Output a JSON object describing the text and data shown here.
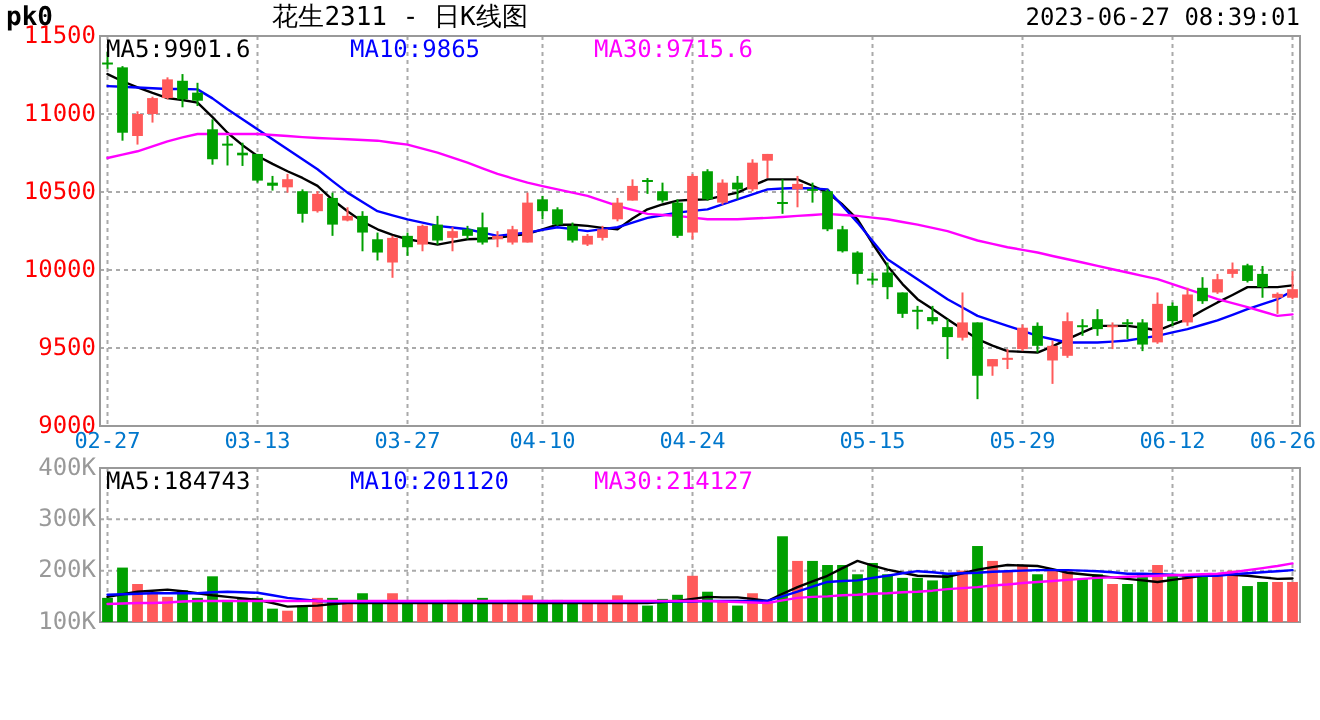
{
  "chart_data": [
    {
      "type": "candlestick",
      "title": "花生2311 - 日K线图",
      "annotations": [
        "pk0",
        "2023-06-27 08:39:01"
      ],
      "categories": [
        "02-27",
        null,
        null,
        null,
        null,
        null,
        null,
        null,
        null,
        null,
        "03-13",
        null,
        null,
        null,
        null,
        null,
        null,
        null,
        null,
        null,
        "03-27",
        null,
        null,
        null,
        null,
        null,
        null,
        null,
        null,
        "04-10",
        null,
        null,
        null,
        null,
        null,
        null,
        null,
        null,
        null,
        "04-24",
        null,
        null,
        null,
        null,
        null,
        null,
        null,
        null,
        null,
        null,
        null,
        "05-15",
        null,
        null,
        null,
        null,
        null,
        null,
        null,
        null,
        null,
        "05-29",
        null,
        null,
        null,
        null,
        null,
        null,
        null,
        null,
        null,
        "06-12",
        null,
        null,
        null,
        null,
        null,
        null,
        null,
        "06-26"
      ],
      "ohlc": [
        [
          11330,
          11400,
          11290,
          11320
        ],
        [
          11299,
          11307,
          10829,
          10880
        ],
        [
          10859,
          11017,
          10804,
          11000
        ],
        [
          11000,
          11111,
          10945,
          11102
        ],
        [
          11102,
          11235,
          11094,
          11222
        ],
        [
          11213,
          11256,
          11043,
          11094
        ],
        [
          11137,
          11200,
          11051,
          11085
        ],
        [
          10902,
          10966,
          10675,
          10710
        ],
        [
          10810,
          10860,
          10670,
          10800
        ],
        [
          10752,
          10816,
          10667,
          10735
        ],
        [
          10744,
          10744,
          10560,
          10573
        ],
        [
          10560,
          10603,
          10509,
          10540
        ],
        [
          10530,
          10616,
          10496,
          10582
        ],
        [
          10505,
          10517,
          10304,
          10360
        ],
        [
          10377,
          10505,
          10368,
          10488
        ],
        [
          10462,
          10496,
          10219,
          10291
        ],
        [
          10317,
          10402,
          10312,
          10347
        ],
        [
          10347,
          10377,
          10120,
          10240
        ],
        [
          10197,
          10240,
          10061,
          10112
        ],
        [
          10048,
          10219,
          9950,
          10206
        ],
        [
          10219,
          10240,
          10091,
          10146
        ],
        [
          10163,
          10291,
          10120,
          10283
        ],
        [
          10291,
          10347,
          10163,
          10189
        ],
        [
          10206,
          10274,
          10120,
          10249
        ],
        [
          10261,
          10283,
          10197,
          10219
        ],
        [
          10274,
          10368,
          10163,
          10176
        ],
        [
          10197,
          10249,
          10146,
          10219
        ],
        [
          10176,
          10283,
          10163,
          10261
        ],
        [
          10176,
          10496,
          10176,
          10432
        ],
        [
          10453,
          10475,
          10325,
          10377
        ],
        [
          10389,
          10402,
          10283,
          10291
        ],
        [
          10283,
          10304,
          10176,
          10189
        ],
        [
          10163,
          10231,
          10154,
          10219
        ],
        [
          10206,
          10283,
          10189,
          10261
        ],
        [
          10325,
          10462,
          10312,
          10432
        ],
        [
          10445,
          10581,
          10445,
          10539
        ],
        [
          10577,
          10590,
          10488,
          10565
        ],
        [
          10505,
          10560,
          10432,
          10445
        ],
        [
          10432,
          10453,
          10206,
          10219
        ],
        [
          10240,
          10616,
          10197,
          10603
        ],
        [
          10633,
          10646,
          10445,
          10453
        ],
        [
          10432,
          10581,
          10419,
          10560
        ],
        [
          10560,
          10603,
          10453,
          10517
        ],
        [
          10517,
          10710,
          10505,
          10688
        ],
        [
          10701,
          10744,
          10590,
          10744
        ],
        [
          10436,
          10581,
          10360,
          10428
        ],
        [
          10517,
          10603,
          10402,
          10552
        ],
        [
          10520,
          10560,
          10432,
          10512
        ],
        [
          10505,
          10517,
          10249,
          10261
        ],
        [
          10261,
          10283,
          10112,
          10120
        ],
        [
          10112,
          10120,
          9907,
          9975
        ],
        [
          9945,
          9984,
          9907,
          9940
        ],
        [
          9984,
          10048,
          9813,
          9890
        ],
        [
          9856,
          9856,
          9693,
          9719
        ],
        [
          9745,
          9770,
          9620,
          9740
        ],
        [
          9698,
          9770,
          9651,
          9672
        ],
        [
          9634,
          9685,
          9429,
          9570
        ],
        [
          9566,
          9856,
          9548,
          9664
        ],
        [
          9664,
          9664,
          9172,
          9322
        ],
        [
          9382,
          9429,
          9322,
          9429
        ],
        [
          9430,
          9493,
          9365,
          9437
        ],
        [
          9493,
          9651,
          9480,
          9630
        ],
        [
          9642,
          9664,
          9471,
          9514
        ],
        [
          9420,
          9548,
          9270,
          9514
        ],
        [
          9450,
          9728,
          9437,
          9672
        ],
        [
          9646,
          9685,
          9578,
          9642
        ],
        [
          9685,
          9749,
          9578,
          9621
        ],
        [
          9638,
          9664,
          9493,
          9646
        ],
        [
          9665,
          9685,
          9557,
          9660
        ],
        [
          9664,
          9685,
          9480,
          9522
        ],
        [
          9536,
          9856,
          9527,
          9783
        ],
        [
          9770,
          9792,
          9642,
          9672
        ],
        [
          9664,
          9886,
          9642,
          9843
        ],
        [
          9886,
          9954,
          9783,
          9800
        ],
        [
          9856,
          9975,
          9847,
          9941
        ],
        [
          9975,
          10048,
          9950,
          10005
        ],
        [
          10030,
          10040,
          9920,
          9930
        ],
        [
          9975,
          10026,
          9822,
          9890
        ],
        [
          9822,
          9856,
          9719,
          9847
        ],
        [
          9822,
          9992,
          9813,
          9877
        ]
      ],
      "colors": [
        "#00a000",
        "#00a000",
        "#ff5a5a",
        "#ff5a5a",
        "#ff5a5a",
        "#00a000",
        "#00a000",
        "#00a000",
        "#00a000",
        "#00a000",
        "#00a000",
        "#00a000",
        "#ff5a5a",
        "#00a000",
        "#ff5a5a",
        "#00a000",
        "#ff5a5a",
        "#00a000",
        "#00a000",
        "#ff5a5a",
        "#00a000",
        "#ff5a5a",
        "#00a000",
        "#ff5a5a",
        "#00a000",
        "#00a000",
        "#ff5a5a",
        "#ff5a5a",
        "#ff5a5a",
        "#00a000",
        "#00a000",
        "#00a000",
        "#ff5a5a",
        "#ff5a5a",
        "#ff5a5a",
        "#ff5a5a",
        "#00a000",
        "#00a000",
        "#00a000",
        "#ff5a5a",
        "#00a000",
        "#ff5a5a",
        "#00a000",
        "#ff5a5a",
        "#ff5a5a",
        "#00a000",
        "#ff5a5a",
        "#00a000",
        "#00a000",
        "#00a000",
        "#00a000",
        "#00a000",
        "#00a000",
        "#00a000",
        "#00a000",
        "#00a000",
        "#00a000",
        "#ff5a5a",
        "#00a000",
        "#ff5a5a",
        "#ff5a5a",
        "#ff5a5a",
        "#00a000",
        "#ff5a5a",
        "#ff5a5a",
        "#00a000",
        "#00a000",
        "#ff5a5a",
        "#00a000",
        "#00a000",
        "#ff5a5a",
        "#00a000",
        "#ff5a5a",
        "#00a000",
        "#ff5a5a",
        "#ff5a5a",
        "#00a000",
        "#00a000",
        "#ff5a5a",
        "#ff5a5a"
      ],
      "series": [
        {
          "name": "MA5:9901.6",
          "type": "line",
          "color": "#000000",
          "values": [
            11256,
            11210,
            11171,
            11135,
            11102,
            11090,
            11073,
            10980,
            10880,
            10800,
            10731,
            10680,
            10633,
            10590,
            10539,
            10450,
            10377,
            10310,
            10261,
            10225,
            10197,
            10180,
            10163,
            10180,
            10197,
            10200,
            10206,
            10220,
            10231,
            10260,
            10291,
            10290,
            10283,
            10270,
            10261,
            10330,
            10389,
            10420,
            10445,
            10450,
            10453,
            10475,
            10496,
            10540,
            10581,
            10581,
            10581,
            10540,
            10496,
            10420,
            10325,
            10170,
            10026,
            9910,
            9813,
            9750,
            9685,
            9620,
            9557,
            9515,
            9480,
            9475,
            9471,
            9510,
            9557,
            9600,
            9642,
            9642,
            9642,
            9630,
            9612,
            9650,
            9685,
            9740,
            9792,
            9840,
            9890,
            9890,
            9890,
            9901.6
          ]
        },
        {
          "name": "MA10:9865",
          "type": "line",
          "color": "#0000ff",
          "values": [
            11179,
            11175,
            11170,
            11165,
            11160,
            11160,
            11158,
            11100,
            11030,
            10966,
            10902,
            10838,
            10774,
            10710,
            10646,
            10570,
            10496,
            10436,
            10377,
            10350,
            10325,
            10304,
            10283,
            10272,
            10261,
            10240,
            10219,
            10230,
            10240,
            10257,
            10274,
            10262,
            10249,
            10262,
            10274,
            10304,
            10334,
            10351,
            10368,
            10379,
            10389,
            10421,
            10453,
            10485,
            10517,
            10522,
            10526,
            10522,
            10517,
            10410,
            10304,
            10186,
            10069,
            10005,
            9941,
            9877,
            9813,
            9760,
            9706,
            9674,
            9642,
            9610,
            9578,
            9556,
            9535,
            9535,
            9535,
            9541,
            9548,
            9563,
            9578,
            9600,
            9621,
            9649,
            9677,
            9713,
            9749,
            9781,
            9813,
            9865
          ]
        },
        {
          "name": "MA30:9715.6",
          "type": "line",
          "color": "#ff00ff",
          "values": [
            10718,
            10740,
            10761,
            10793,
            10825,
            10850,
            10872,
            10872,
            10872,
            10872,
            10872,
            10865,
            10859,
            10852,
            10846,
            10842,
            10838,
            10833,
            10829,
            10816,
            10804,
            10778,
            10752,
            10720,
            10688,
            10652,
            10616,
            10588,
            10560,
            10538,
            10517,
            10496,
            10475,
            10443,
            10411,
            10385,
            10360,
            10353,
            10347,
            10336,
            10325,
            10325,
            10325,
            10330,
            10334,
            10340,
            10347,
            10353,
            10360,
            10353,
            10347,
            10336,
            10325,
            10308,
            10291,
            10270,
            10249,
            10219,
            10189,
            10167,
            10146,
            10129,
            10112,
            10090,
            10069,
            10048,
            10026,
            10005,
            9984,
            9962,
            9941,
            9909,
            9877,
            9845,
            9813,
            9788,
            9762,
            9734,
            9706,
            9715.6
          ]
        }
      ],
      "ylim": [
        9000,
        11500
      ],
      "yticks": [
        9000,
        9500,
        10000,
        10500,
        11000,
        11500
      ],
      "grid": true,
      "legend": "top"
    },
    {
      "type": "bar",
      "categories": [
        null,
        null,
        null,
        null,
        null,
        null,
        null,
        null,
        null,
        null,
        null,
        null,
        null,
        null,
        null,
        null,
        null,
        null,
        null,
        null,
        null,
        null,
        null,
        null,
        null,
        null,
        null,
        null,
        null,
        null,
        null,
        null,
        null,
        null,
        null,
        null,
        null,
        null,
        null,
        null,
        null,
        null,
        null,
        null,
        null,
        null,
        null,
        null,
        null,
        null,
        null,
        null,
        null,
        null,
        null,
        null,
        null,
        null,
        null,
        null,
        null,
        null,
        null,
        null,
        null,
        null,
        null,
        null,
        null,
        null,
        null,
        null,
        null,
        null,
        null,
        null,
        null,
        null,
        null,
        null
      ],
      "series": [
        {
          "type": "bar",
          "colors": [
            "#00a000",
            "#00a000",
            "#ff5a5a",
            "#ff5a5a",
            "#ff5a5a",
            "#00a000",
            "#00a000",
            "#00a000",
            "#00a000",
            "#00a000",
            "#00a000",
            "#00a000",
            "#ff5a5a",
            "#00a000",
            "#ff5a5a",
            "#00a000",
            "#ff5a5a",
            "#00a000",
            "#00a000",
            "#ff5a5a",
            "#00a000",
            "#ff5a5a",
            "#00a000",
            "#ff5a5a",
            "#00a000",
            "#00a000",
            "#ff5a5a",
            "#ff5a5a",
            "#ff5a5a",
            "#00a000",
            "#00a000",
            "#00a000",
            "#ff5a5a",
            "#ff5a5a",
            "#ff5a5a",
            "#ff5a5a",
            "#00a000",
            "#00a000",
            "#00a000",
            "#ff5a5a",
            "#00a000",
            "#ff5a5a",
            "#00a000",
            "#ff5a5a",
            "#ff5a5a",
            "#00a000",
            "#ff5a5a",
            "#00a000",
            "#00a000",
            "#00a000",
            "#00a000",
            "#00a000",
            "#00a000",
            "#00a000",
            "#00a000",
            "#00a000",
            "#00a000",
            "#ff5a5a",
            "#00a000",
            "#ff5a5a",
            "#ff5a5a",
            "#ff5a5a",
            "#00a000",
            "#ff5a5a",
            "#ff5a5a",
            "#00a000",
            "#00a000",
            "#ff5a5a",
            "#00a000",
            "#00a000",
            "#ff5a5a",
            "#00a000",
            "#ff5a5a",
            "#00a000",
            "#ff5a5a",
            "#ff5a5a",
            "#00a000",
            "#00a000",
            "#ff5a5a",
            "#ff5a5a"
          ],
          "values": [
            147000,
            206000,
            174000,
            157000,
            149000,
            162000,
            147000,
            189000,
            143000,
            147000,
            147000,
            126000,
            122000,
            132000,
            147000,
            147000,
            137000,
            156000,
            137000,
            156000,
            137000,
            140000,
            137000,
            143000,
            135000,
            147000,
            137000,
            143000,
            152000,
            143000,
            143000,
            137000,
            137000,
            135000,
            152000,
            140000,
            132000,
            145000,
            153000,
            190000,
            159000,
            141000,
            132000,
            156000,
            141000,
            267000,
            219000,
            219000,
            211000,
            211000,
            193000,
            215000,
            193000,
            186000,
            186000,
            181000,
            193000,
            200000,
            248000,
            219000,
            199000,
            211000,
            193000,
            200000,
            199000,
            184000,
            193000,
            174000,
            174000,
            193000,
            211000,
            193000,
            193000,
            193000,
            193000,
            200000,
            170000,
            178000,
            178000,
            178000
          ]
        },
        {
          "name": "MA5:184743",
          "type": "line",
          "color": "#000000",
          "values": [
            149000,
            154000,
            159000,
            161000,
            163000,
            160000,
            156000,
            152000,
            149000,
            146000,
            143000,
            137000,
            130000,
            131000,
            132000,
            135000,
            137000,
            137000,
            137000,
            137000,
            137000,
            137000,
            137000,
            137000,
            137000,
            137000,
            137000,
            137000,
            137000,
            137000,
            137000,
            137000,
            137000,
            137000,
            137000,
            137000,
            137000,
            139000,
            141000,
            145000,
            149000,
            148000,
            148000,
            145000,
            141000,
            155000,
            168000,
            179000,
            190000,
            205000,
            219000,
            210000,
            202000,
            196000,
            190000,
            189000,
            188000,
            195000,
            202000,
            207000,
            211000,
            210000,
            209000,
            203000,
            196000,
            193000,
            190000,
            187000,
            184000,
            181000,
            178000,
            182000,
            186000,
            190000,
            193000,
            192000,
            190000,
            187000,
            184000,
            184743
          ]
        },
        {
          "name": "MA10:201120",
          "type": "line",
          "color": "#0000ff",
          "values": [
            153000,
            154000,
            155000,
            156000,
            156000,
            156000,
            156000,
            158000,
            159000,
            158000,
            157000,
            152000,
            147000,
            144000,
            141000,
            140000,
            140000,
            140000,
            140000,
            140000,
            140000,
            140000,
            140000,
            140000,
            140000,
            140000,
            140000,
            140000,
            140000,
            140000,
            140000,
            140000,
            140000,
            140000,
            140000,
            140000,
            140000,
            140000,
            140000,
            140000,
            141000,
            141000,
            141000,
            141000,
            141000,
            150000,
            159000,
            169000,
            178000,
            180000,
            181000,
            186000,
            190000,
            195000,
            199000,
            197000,
            194000,
            195000,
            196000,
            198000,
            199000,
            200000,
            201000,
            201000,
            201000,
            200000,
            199000,
            197000,
            194000,
            194000,
            193000,
            192000,
            190000,
            190000,
            190000,
            193000,
            195000,
            197000,
            199000,
            201120
          ]
        },
        {
          "name": "MA30:214127",
          "type": "line",
          "color": "#ff00ff",
          "values": [
            135000,
            136000,
            137000,
            137000,
            138000,
            140000,
            141000,
            141000,
            141000,
            141000,
            141000,
            141000,
            141000,
            141000,
            141000,
            141000,
            141000,
            141000,
            141000,
            141000,
            141000,
            141000,
            141000,
            141000,
            141000,
            141000,
            141000,
            141000,
            141000,
            141000,
            141000,
            141000,
            141000,
            141000,
            141000,
            141000,
            141000,
            141000,
            141000,
            141000,
            141000,
            140000,
            139000,
            138000,
            137000,
            142000,
            147000,
            149000,
            150000,
            152000,
            153000,
            155000,
            156000,
            158000,
            159000,
            161000,
            164000,
            166000,
            168000,
            171000,
            173000,
            176000,
            178000,
            180000,
            182000,
            184000,
            186000,
            187000,
            188000,
            189000,
            190000,
            191000,
            192000,
            193000,
            194000,
            197000,
            201000,
            205000,
            209000,
            214127
          ]
        }
      ],
      "ylim": [
        100000,
        400000
      ],
      "yticks": [
        {
          "value": 100000,
          "label": "100K"
        },
        {
          "value": 200000,
          "label": "200K"
        },
        {
          "value": 300000,
          "label": "300K"
        },
        {
          "value": 400000,
          "label": "400K"
        }
      ],
      "grid": true,
      "legend": "top",
      "tick_labels": "y"
    }
  ]
}
